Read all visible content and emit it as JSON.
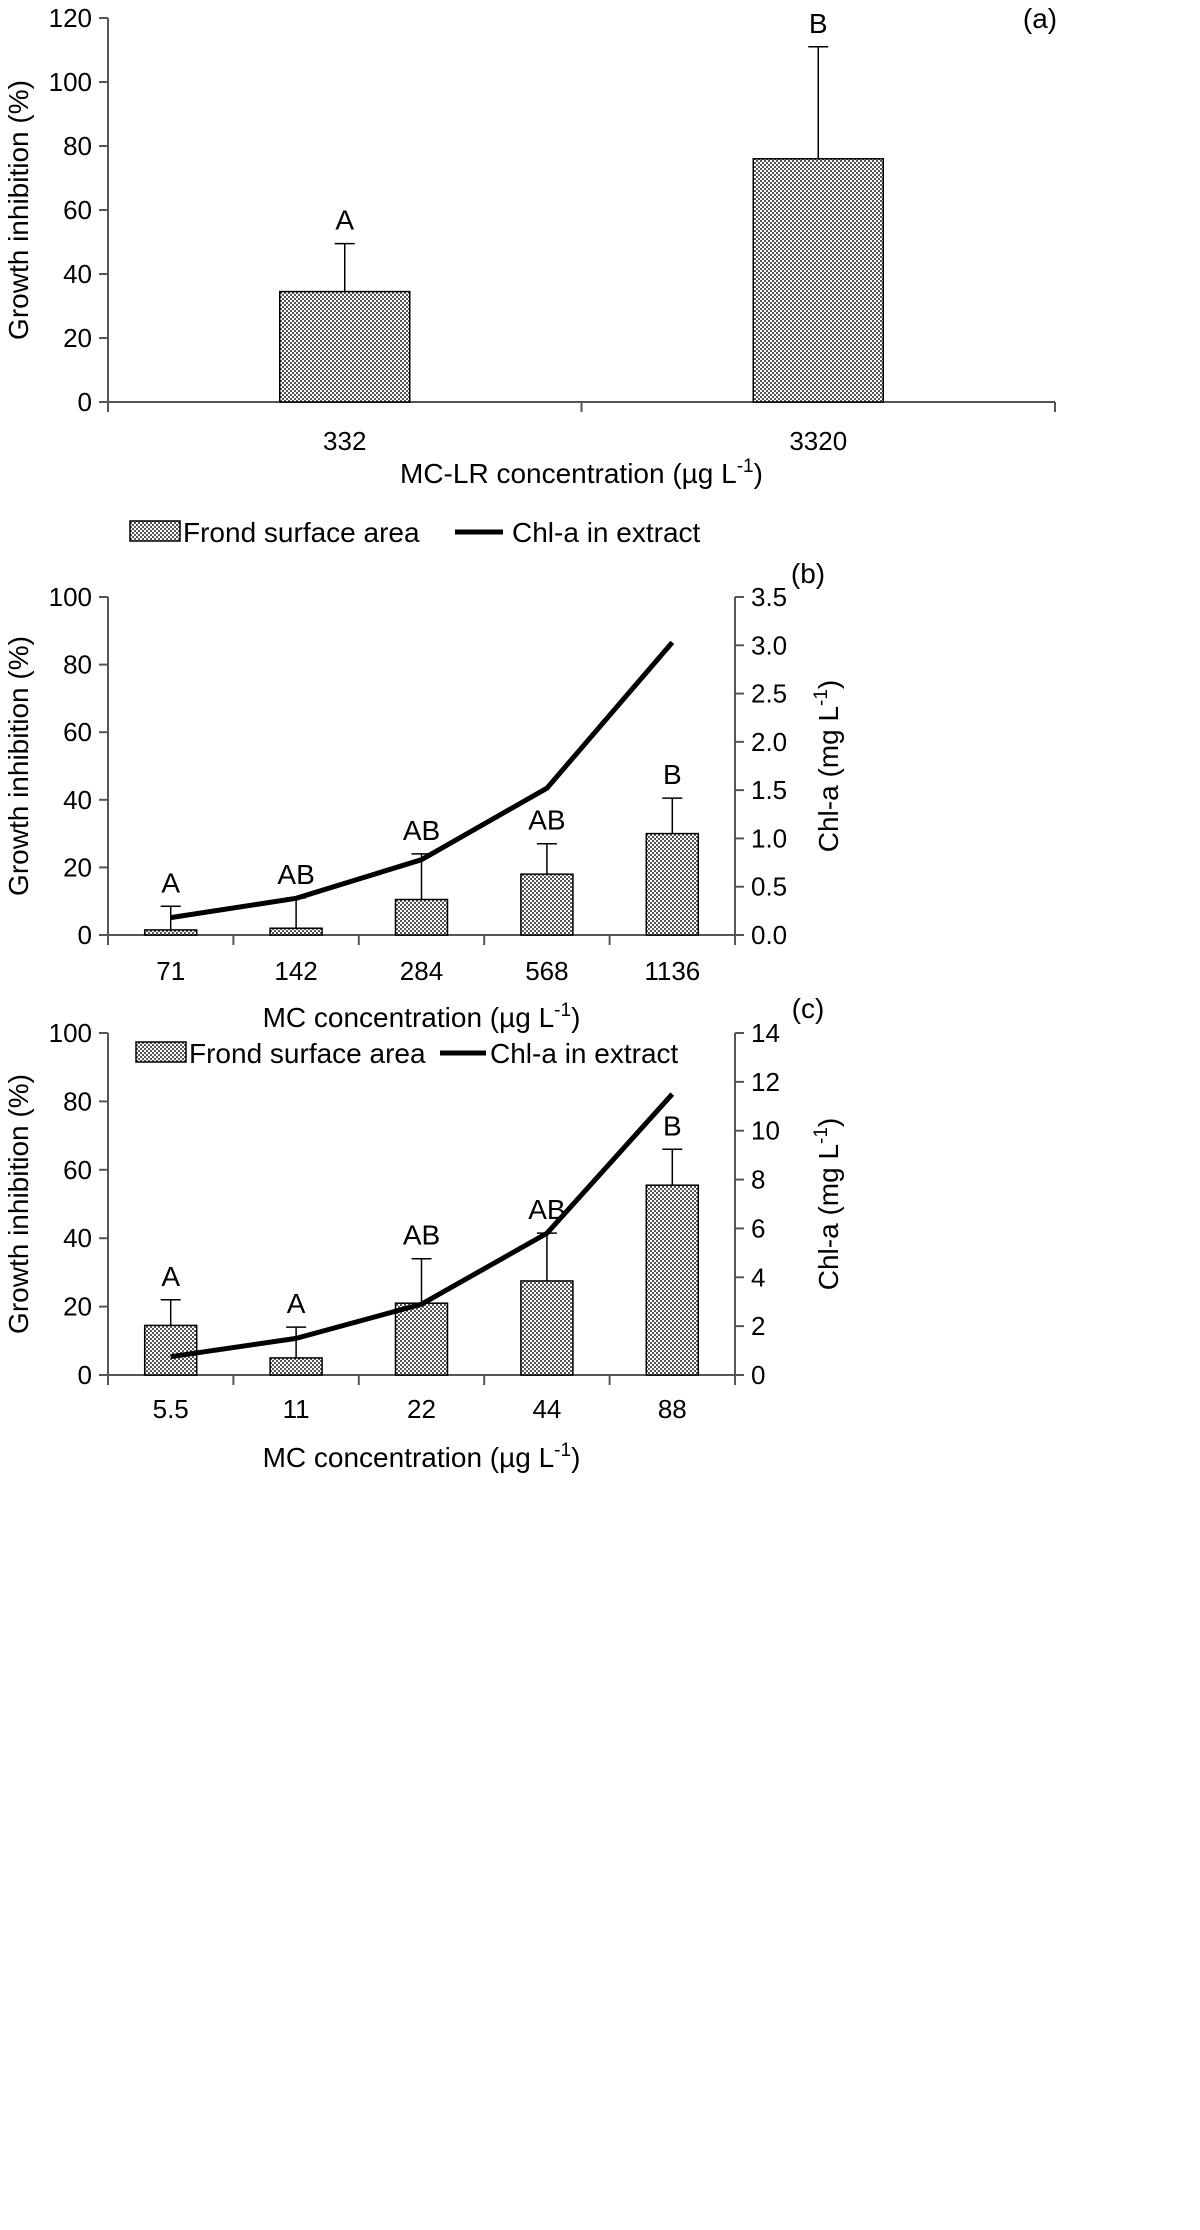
{
  "chart_data": [
    {
      "type": "bar",
      "panel_label": "(a)",
      "categories": [
        "332",
        "3320"
      ],
      "values": [
        34.5,
        76.0
      ],
      "errors": [
        15.0,
        35.0
      ],
      "significance": [
        "A",
        "B"
      ],
      "ylabel": "Growth inhibition (%)",
      "xlabel_prefix": "MC-LR concentration (µg L",
      "xlabel_sup": "-1",
      "xlabel_suffix": ")",
      "ylim": [
        0,
        120
      ],
      "yticks": [
        0,
        20,
        40,
        60,
        80,
        100,
        120
      ],
      "grid": false,
      "colors": {
        "bar_fill": "#b0b0b0",
        "bar_stroke": "#000000"
      }
    },
    {
      "type": "bar+line",
      "panel_label": "(b)",
      "categories": [
        "71",
        "142",
        "284",
        "568",
        "1136"
      ],
      "series": [
        {
          "name": "Frond surface area",
          "type": "bar",
          "axis": "left",
          "values": [
            1.5,
            2.0,
            10.5,
            18.0,
            30.0
          ],
          "errors": [
            7.0,
            9.0,
            13.5,
            9.0,
            10.5
          ],
          "significance": [
            "A",
            "AB",
            "AB",
            "AB",
            "B"
          ]
        },
        {
          "name": "Chl-a in extract",
          "type": "line",
          "axis": "right",
          "values": [
            0.18,
            0.38,
            0.78,
            1.52,
            3.03
          ]
        }
      ],
      "ylabel": "Growth inhibition (%)",
      "y2label_prefix": "Chl-a (mg L",
      "y2label_sup": "-1",
      "y2label_suffix": ")",
      "xlabel_prefix": "MC concentration (µg L",
      "xlabel_sup": "-1",
      "xlabel_suffix": ")",
      "ylim": [
        0,
        100
      ],
      "yticks": [
        0,
        20,
        40,
        60,
        80,
        100
      ],
      "y2lim": [
        0,
        3.5
      ],
      "y2ticks": [
        "0.0",
        "0.5",
        "1.0",
        "1.5",
        "2.0",
        "2.5",
        "3.0",
        "3.5"
      ],
      "legend": "top",
      "grid": false
    },
    {
      "type": "bar+line",
      "panel_label": "(c)",
      "categories": [
        "5.5",
        "11",
        "22",
        "44",
        "88"
      ],
      "series": [
        {
          "name": "Frond surface area",
          "type": "bar",
          "axis": "left",
          "values": [
            14.5,
            5.0,
            21.0,
            27.5,
            55.5
          ],
          "errors": [
            7.5,
            9.0,
            13.0,
            14.0,
            10.5
          ],
          "significance": [
            "A",
            "A",
            "AB",
            "AB",
            "B"
          ]
        },
        {
          "name": "Chl-a in extract",
          "type": "line",
          "axis": "right",
          "values": [
            0.75,
            1.5,
            2.9,
            5.8,
            11.5
          ]
        }
      ],
      "ylabel": "Growth inhibition (%)",
      "y2label_prefix": "Chl-a (mg L",
      "y2label_sup": "-1",
      "y2label_suffix": ")",
      "xlabel_prefix": "MC concentration (µg L",
      "xlabel_sup": "-1",
      "xlabel_suffix": ")",
      "ylim": [
        0,
        100
      ],
      "yticks": [
        0,
        20,
        40,
        60,
        80,
        100
      ],
      "y2lim": [
        0,
        14
      ],
      "y2ticks": [
        "0",
        "2",
        "4",
        "6",
        "8",
        "10",
        "12",
        "14"
      ],
      "legend": "top",
      "grid": false
    }
  ]
}
